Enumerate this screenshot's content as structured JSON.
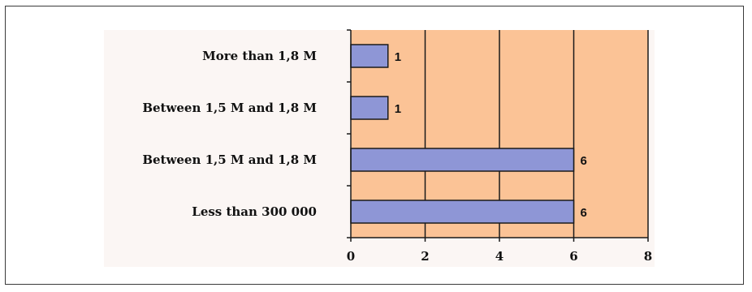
{
  "chart_data": {
    "type": "bar",
    "orientation": "horizontal",
    "categories": [
      "More than 1,8 M",
      "Between 1,5 M and 1,8 M",
      "Between 1,5 M and 1,8 M",
      "Less than 300 000"
    ],
    "values": [
      1,
      1,
      6,
      6
    ],
    "data_labels": [
      "1",
      "1",
      "6",
      "6"
    ],
    "title": "",
    "xlabel": "",
    "ylabel": "",
    "xlim": [
      0,
      8
    ],
    "xticks": [
      0,
      2,
      4,
      6,
      8
    ],
    "xtick_labels": [
      "0",
      "2",
      "4",
      "6",
      "8"
    ],
    "grid": "vertical",
    "legend": "none",
    "colors": {
      "bar": "#8e96d6",
      "plot_background": "#fbc396",
      "outline": "#1a1a1a"
    }
  }
}
